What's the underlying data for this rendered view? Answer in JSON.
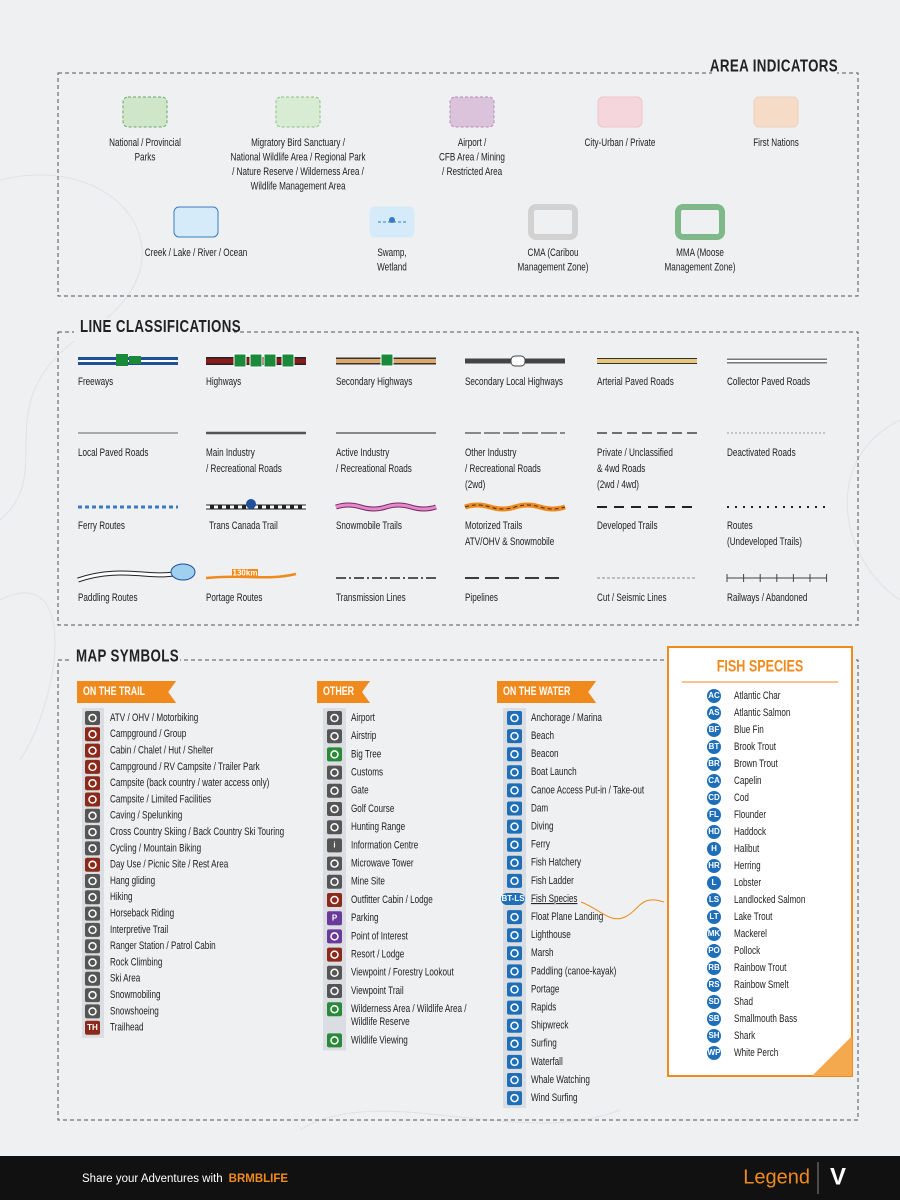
{
  "area_indicators": {
    "title": "AREA INDICATORS",
    "items": [
      {
        "lines": [
          "National / Provincial",
          "Parks"
        ]
      },
      {
        "lines": [
          "Migratory Bird Sanctuary /",
          "National Wildlife Area / Regional Park",
          "/ Nature Reserve  / Wilderness Area /",
          "Wildlife Management Area"
        ]
      },
      {
        "lines": [
          "Airport /",
          "CFB Area / Mining",
          "/ Restricted Area"
        ]
      },
      {
        "lines": [
          "City-Urban / Private"
        ]
      },
      {
        "lines": [
          "First Nations"
        ]
      },
      {
        "lines": [
          "Creek / Lake / River / Ocean"
        ]
      },
      {
        "lines": [
          "Swamp,",
          "Wetland"
        ]
      },
      {
        "lines": [
          "CMA (Caribou",
          "Management Zone)"
        ]
      },
      {
        "lines": [
          "MMA (Moose",
          "Management  Zone)"
        ]
      }
    ]
  },
  "line_classifications": {
    "title": "LINE CLASSIFICATIONS",
    "items": [
      {
        "lines": [
          "Freeways"
        ]
      },
      {
        "lines": [
          "Highways"
        ]
      },
      {
        "lines": [
          "Secondary Highways"
        ]
      },
      {
        "lines": [
          "Secondary Local Highways"
        ]
      },
      {
        "lines": [
          "Arterial Paved Roads"
        ]
      },
      {
        "lines": [
          "Collector Paved Roads"
        ]
      },
      {
        "lines": [
          "Local Paved Roads"
        ]
      },
      {
        "lines": [
          "Main Industry",
          "/ Recreational Roads"
        ]
      },
      {
        "lines": [
          "Active Industry",
          "/ Recreational Roads"
        ]
      },
      {
        "lines": [
          "Other Industry",
          "/ Recreational Roads",
          "(2wd)"
        ]
      },
      {
        "lines": [
          "Private / Unclassified",
          "& 4wd Roads",
          "(2wd / 4wd)"
        ]
      },
      {
        "lines": [
          "Deactivated Roads"
        ]
      },
      {
        "lines": [
          "Ferry Routes"
        ]
      },
      {
        "lines": [
          "Trans Canada Trail"
        ]
      },
      {
        "lines": [
          "Snowmobile Trails"
        ]
      },
      {
        "lines": [
          "Motorized Trails",
          "ATV/OHV & Snowmobile"
        ]
      },
      {
        "lines": [
          "Developed Trails"
        ]
      },
      {
        "lines": [
          "Routes",
          "(Undeveloped Trails)"
        ]
      },
      {
        "lines": [
          "Paddling Routes"
        ]
      },
      {
        "lines": [
          "Portage Routes"
        ],
        "badge": "130km"
      },
      {
        "lines": [
          "Transmission Lines"
        ]
      },
      {
        "lines": [
          "Pipelines"
        ]
      },
      {
        "lines": [
          "Cut / Seismic Lines"
        ]
      },
      {
        "lines": [
          "Railways / Abandoned"
        ]
      }
    ]
  },
  "map_symbols": {
    "title": "MAP SYMBOLS",
    "groups": [
      {
        "title": "ON THE TRAIL",
        "items": [
          {
            "lines": [
              "ATV / OHV / Motorbiking"
            ]
          },
          {
            "lines": [
              "Campground / Group"
            ]
          },
          {
            "lines": [
              "Cabin / Chalet / Hut / Shelter"
            ]
          },
          {
            "lines": [
              "Campground / RV Campsite / Trailer Park"
            ]
          },
          {
            "lines": [
              "Campsite (back country / water access only)"
            ]
          },
          {
            "lines": [
              "Campsite / Limited Facilities"
            ]
          },
          {
            "lines": [
              "Caving / Spelunking"
            ]
          },
          {
            "lines": [
              "Cross Country Skiing / Back Country Ski Touring"
            ]
          },
          {
            "lines": [
              "Cycling / Mountain Biking"
            ]
          },
          {
            "lines": [
              "Day Use / Picnic Site / Rest Area"
            ]
          },
          {
            "lines": [
              "Hang gliding"
            ]
          },
          {
            "lines": [
              "Hiking"
            ]
          },
          {
            "lines": [
              "Horseback Riding"
            ]
          },
          {
            "lines": [
              "Interpretive Trail"
            ]
          },
          {
            "lines": [
              "Ranger Station / Patrol Cabin"
            ]
          },
          {
            "lines": [
              "Rock Climbing"
            ]
          },
          {
            "lines": [
              "Ski Area"
            ]
          },
          {
            "lines": [
              "Snowmobiling"
            ]
          },
          {
            "lines": [
              "Snowshoeing"
            ]
          },
          {
            "lines": [
              "Trailhead"
            ],
            "icon_text": "TH"
          }
        ]
      },
      {
        "title": "OTHER",
        "items": [
          {
            "lines": [
              "Airport"
            ]
          },
          {
            "lines": [
              "Airstrip"
            ]
          },
          {
            "lines": [
              "Big Tree"
            ]
          },
          {
            "lines": [
              "Customs"
            ]
          },
          {
            "lines": [
              "Gate"
            ]
          },
          {
            "lines": [
              "Golf Course"
            ]
          },
          {
            "lines": [
              "Hunting Range"
            ]
          },
          {
            "lines": [
              "Information Centre"
            ],
            "icon_text": "i"
          },
          {
            "lines": [
              "Microwave Tower"
            ]
          },
          {
            "lines": [
              "Mine Site"
            ]
          },
          {
            "lines": [
              "Outfitter Cabin / Lodge"
            ]
          },
          {
            "lines": [
              "Parking"
            ],
            "icon_text": "P"
          },
          {
            "lines": [
              "Point of Interest"
            ]
          },
          {
            "lines": [
              "Resort / Lodge"
            ]
          },
          {
            "lines": [
              "Viewpoint / Forestry Lookout"
            ]
          },
          {
            "lines": [
              "Viewpoint Trail"
            ]
          },
          {
            "lines": [
              "Wilderness Area / Wildlife Area /",
              "Wildlife Reserve"
            ]
          },
          {
            "lines": [
              "Wildlife Viewing"
            ]
          }
        ]
      },
      {
        "title": "ON THE WATER",
        "items": [
          {
            "lines": [
              "Anchorage / Marina"
            ]
          },
          {
            "lines": [
              "Beach"
            ]
          },
          {
            "lines": [
              "Beacon"
            ]
          },
          {
            "lines": [
              "Boat Launch"
            ]
          },
          {
            "lines": [
              "Canoe Access Put-in / Take-out"
            ]
          },
          {
            "lines": [
              "Dam"
            ]
          },
          {
            "lines": [
              "Diving"
            ]
          },
          {
            "lines": [
              "Ferry"
            ]
          },
          {
            "lines": [
              "Fish Hatchery"
            ]
          },
          {
            "lines": [
              "Fish Ladder"
            ]
          },
          {
            "lines": [
              "Fish Species"
            ],
            "icon_text": "BT-LS"
          },
          {
            "lines": [
              "Float Plane Landing"
            ]
          },
          {
            "lines": [
              "Lighthouse"
            ]
          },
          {
            "lines": [
              "Marsh"
            ]
          },
          {
            "lines": [
              "Paddling (canoe-kayak)"
            ]
          },
          {
            "lines": [
              "Portage"
            ]
          },
          {
            "lines": [
              "Rapids"
            ]
          },
          {
            "lines": [
              "Shipwreck"
            ]
          },
          {
            "lines": [
              "Surfing"
            ]
          },
          {
            "lines": [
              "Waterfall"
            ]
          },
          {
            "lines": [
              "Whale Watching"
            ]
          },
          {
            "lines": [
              "Wind Surfing"
            ]
          }
        ]
      }
    ]
  },
  "fish_species": {
    "title": "FISH SPECIES",
    "items": [
      {
        "code": "AC",
        "name": "Atlantic Char"
      },
      {
        "code": "AS",
        "name": "Atlantic Salmon"
      },
      {
        "code": "BF",
        "name": "Blue Fin"
      },
      {
        "code": "BT",
        "name": "Brook Trout"
      },
      {
        "code": "BR",
        "name": "Brown Trout"
      },
      {
        "code": "CA",
        "name": "Capelin"
      },
      {
        "code": "CD",
        "name": "Cod"
      },
      {
        "code": "FL",
        "name": "Flounder"
      },
      {
        "code": "HD",
        "name": "Haddock"
      },
      {
        "code": "H",
        "name": "Halibut"
      },
      {
        "code": "HR",
        "name": "Herring"
      },
      {
        "code": "L",
        "name": "Lobster"
      },
      {
        "code": "LS",
        "name": "Landlocked Salmon"
      },
      {
        "code": "LT",
        "name": "Lake Trout"
      },
      {
        "code": "MK",
        "name": "Mackerel"
      },
      {
        "code": "PO",
        "name": "Pollock"
      },
      {
        "code": "RB",
        "name": "Rainbow Trout"
      },
      {
        "code": "RS",
        "name": "Rainbow Smelt"
      },
      {
        "code": "SD",
        "name": "Shad"
      },
      {
        "code": "SB",
        "name": "Smallmouth Bass"
      },
      {
        "code": "SH",
        "name": "Shark"
      },
      {
        "code": "WP",
        "name": "White Perch"
      }
    ]
  },
  "footer": {
    "share": "Share your Adventures with",
    "brand": "BRMBLIFE",
    "legend": "Legend",
    "mark": "V"
  }
}
